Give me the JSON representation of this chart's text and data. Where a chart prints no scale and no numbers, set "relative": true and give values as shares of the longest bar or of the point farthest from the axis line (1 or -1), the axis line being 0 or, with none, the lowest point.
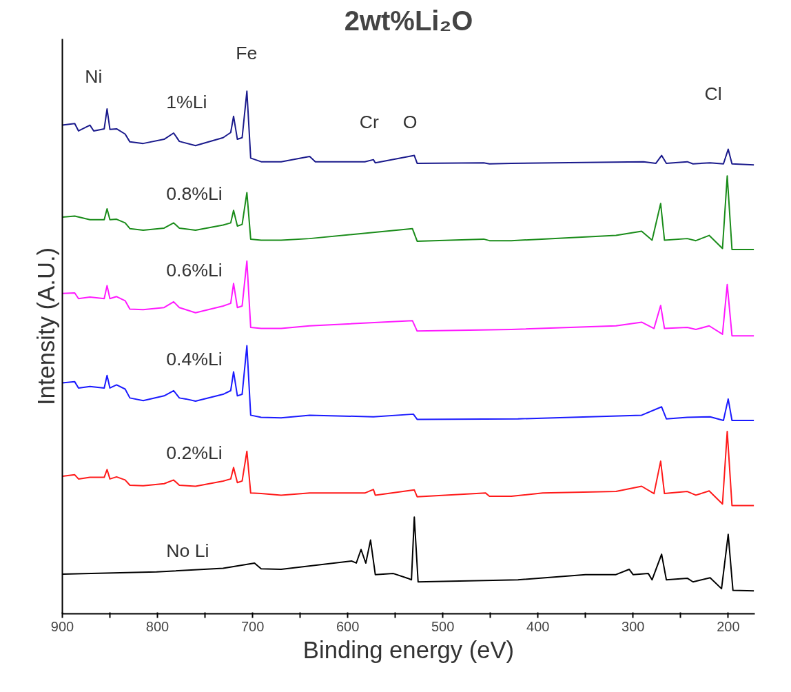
{
  "chart_data": {
    "type": "line",
    "title": "2wt%Li₂O",
    "xlabel": "Binding energy (eV)",
    "ylabel": "Intensity (A.U.)",
    "relative": true,
    "xlim": [
      900,
      172
    ],
    "xticks": [
      900,
      {
        "value": 850,
        "label": null
      },
      800,
      {
        "value": 750,
        "label": null
      },
      700,
      {
        "value": 650,
        "label": null
      },
      600,
      {
        "value": 550,
        "label": null
      },
      500,
      {
        "value": 450,
        "label": null
      },
      400,
      {
        "value": 350,
        "label": null
      },
      300,
      {
        "value": 250,
        "label": null
      },
      200
    ],
    "annotations": [
      "Ni",
      "Fe",
      "Cr",
      "O",
      "Cl"
    ],
    "series": [
      {
        "name": "1%Li",
        "color": "#1a1a8c",
        "x": [
          900,
          887,
          883,
          871,
          867,
          856,
          853,
          850,
          843,
          834,
          829,
          815,
          793,
          783,
          777,
          760,
          731,
          723,
          720,
          716,
          711,
          706,
          702,
          691,
          670,
          640,
          634,
          582,
          573,
          571,
          530,
          527,
          457,
          451,
          428,
          289,
          276,
          270,
          265,
          243,
          237,
          219,
          205,
          200,
          196,
          173
        ],
        "values": [
          0.935,
          0.938,
          0.924,
          0.935,
          0.924,
          0.928,
          0.966,
          0.927,
          0.928,
          0.918,
          0.903,
          0.9,
          0.908,
          0.92,
          0.904,
          0.896,
          0.911,
          0.921,
          0.952,
          0.908,
          0.911,
          1,
          0.872,
          0.865,
          0.865,
          0.875,
          0.865,
          0.865,
          0.869,
          0.863,
          0.877,
          0.862,
          0.863,
          0.861,
          0.862,
          0.865,
          0.862,
          0.877,
          0.862,
          0.865,
          0.861,
          0.863,
          0.861,
          0.889,
          0.861,
          0.859
        ]
      },
      {
        "name": "0.8%Li",
        "color": "#1a8c1a",
        "x": [
          900,
          887,
          871,
          856,
          853,
          850,
          843,
          834,
          829,
          815,
          793,
          783,
          777,
          760,
          731,
          723,
          720,
          716,
          711,
          706,
          702,
          691,
          670,
          640,
          532,
          527,
          457,
          451,
          428,
          318,
          291,
          280,
          271,
          267,
          243,
          234,
          220,
          206,
          201,
          196,
          173
        ],
        "values": [
          0.759,
          0.761,
          0.754,
          0.754,
          0.775,
          0.754,
          0.755,
          0.748,
          0.737,
          0.734,
          0.738,
          0.748,
          0.738,
          0.734,
          0.744,
          0.748,
          0.772,
          0.742,
          0.745,
          0.806,
          0.717,
          0.715,
          0.715,
          0.718,
          0.737,
          0.713,
          0.717,
          0.714,
          0.714,
          0.724,
          0.732,
          0.715,
          0.785,
          0.715,
          0.718,
          0.714,
          0.724,
          0.699,
          0.838,
          0.697,
          0.697
        ]
      },
      {
        "name": "0.6%Li",
        "color": "#ff1aff",
        "x": [
          900,
          887,
          883,
          871,
          856,
          853,
          850,
          843,
          834,
          829,
          815,
          793,
          783,
          777,
          760,
          731,
          723,
          720,
          716,
          711,
          706,
          702,
          691,
          670,
          640,
          532,
          527,
          428,
          318,
          291,
          278,
          271,
          267,
          243,
          234,
          220,
          206,
          201,
          196,
          173
        ],
        "values": [
          0.613,
          0.614,
          0.603,
          0.606,
          0.603,
          0.628,
          0.603,
          0.607,
          0.599,
          0.583,
          0.582,
          0.586,
          0.597,
          0.586,
          0.576,
          0.589,
          0.594,
          0.632,
          0.586,
          0.589,
          0.675,
          0.548,
          0.546,
          0.546,
          0.551,
          0.561,
          0.541,
          0.544,
          0.551,
          0.558,
          0.546,
          0.59,
          0.546,
          0.548,
          0.544,
          0.551,
          0.535,
          0.63,
          0.532,
          0.532
        ]
      },
      {
        "name": "0.4%Li",
        "color": "#1a1aff",
        "x": [
          900,
          887,
          883,
          871,
          856,
          853,
          850,
          843,
          834,
          829,
          815,
          793,
          783,
          777,
          770,
          760,
          731,
          723,
          720,
          716,
          711,
          706,
          702,
          691,
          670,
          640,
          573,
          531,
          527,
          421,
          291,
          270,
          265,
          243,
          219,
          205,
          200,
          196,
          173
        ],
        "values": [
          0.442,
          0.444,
          0.432,
          0.435,
          0.432,
          0.456,
          0.432,
          0.438,
          0.43,
          0.413,
          0.408,
          0.417,
          0.427,
          0.413,
          0.411,
          0.407,
          0.42,
          0.427,
          0.463,
          0.417,
          0.42,
          0.513,
          0.38,
          0.376,
          0.375,
          0.38,
          0.377,
          0.382,
          0.372,
          0.373,
          0.38,
          0.396,
          0.373,
          0.376,
          0.377,
          0.37,
          0.411,
          0.37,
          0.37
        ]
      },
      {
        "name": "0.2%Li",
        "color": "#ff1a1a",
        "x": [
          900,
          887,
          883,
          871,
          856,
          853,
          850,
          843,
          834,
          829,
          815,
          793,
          783,
          777,
          760,
          731,
          723,
          720,
          716,
          711,
          706,
          702,
          691,
          670,
          640,
          582,
          573,
          571,
          530,
          527,
          455,
          451,
          428,
          395,
          318,
          291,
          278,
          271,
          267,
          243,
          234,
          220,
          206,
          201,
          196,
          173
        ],
        "values": [
          0.263,
          0.266,
          0.258,
          0.261,
          0.261,
          0.276,
          0.258,
          0.262,
          0.256,
          0.246,
          0.245,
          0.249,
          0.256,
          0.246,
          0.244,
          0.254,
          0.258,
          0.28,
          0.251,
          0.254,
          0.311,
          0.231,
          0.23,
          0.227,
          0.231,
          0.231,
          0.238,
          0.227,
          0.237,
          0.224,
          0.231,
          0.225,
          0.225,
          0.231,
          0.234,
          0.244,
          0.23,
          0.292,
          0.23,
          0.234,
          0.227,
          0.235,
          0.21,
          0.349,
          0.207,
          0.207
        ]
      },
      {
        "name": "No Li",
        "color": "#000000",
        "x": [
          900,
          801,
          731,
          698,
          691,
          670,
          596,
          591,
          586,
          581,
          576,
          571,
          552,
          537,
          533,
          530,
          526,
          421,
          350,
          318,
          304,
          300,
          284,
          280,
          270,
          265,
          243,
          237,
          219,
          207,
          200,
          195,
          173
        ],
        "values": [
          0.076,
          0.08,
          0.087,
          0.097,
          0.086,
          0.085,
          0.101,
          0.097,
          0.123,
          0.097,
          0.141,
          0.075,
          0.077,
          0.068,
          0.065,
          0.185,
          0.061,
          0.065,
          0.075,
          0.075,
          0.085,
          0.075,
          0.077,
          0.065,
          0.114,
          0.065,
          0.068,
          0.061,
          0.069,
          0.048,
          0.152,
          0.045,
          0.044
        ]
      }
    ]
  }
}
